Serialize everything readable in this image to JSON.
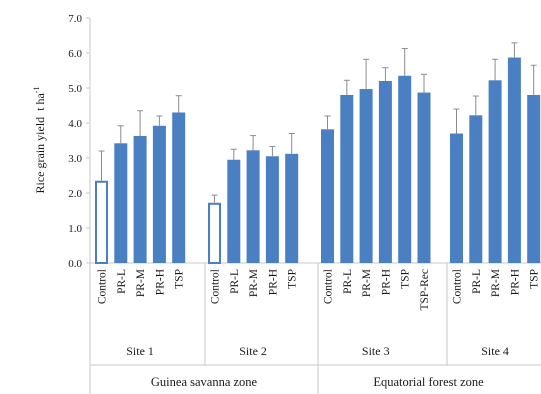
{
  "chart_data": {
    "type": "bar",
    "ylabel": "Rice grain yield",
    "ylabel_unit_main": "t ha",
    "ylabel_unit_sup": "-1",
    "ylim": [
      0,
      7
    ],
    "yticks": [
      "0.0",
      "1.0",
      "2.0",
      "3.0",
      "4.0",
      "5.0",
      "6.0",
      "7.0"
    ],
    "grid": false,
    "colors": {
      "filled": "#4a7fc1",
      "hollow_fill": "#ffffff",
      "hollow_stroke": "#4a7fc1",
      "error": "#8c8c8c",
      "axis": "#c8c8c8"
    },
    "zones": [
      "Guinea savanna zone",
      "Equatorial forest zone"
    ],
    "groups": [
      {
        "site": "Site 1",
        "bars": [
          {
            "label": "Control",
            "value": 2.35,
            "error": 0.85,
            "hollow": true
          },
          {
            "label": "PR-L",
            "value": 3.42,
            "error": 0.5
          },
          {
            "label": "PR-M",
            "value": 3.63,
            "error": 0.72
          },
          {
            "label": "PR-H",
            "value": 3.92,
            "error": 0.28
          },
          {
            "label": "TSP",
            "value": 4.3,
            "error": 0.48
          }
        ]
      },
      {
        "site": "Site 2",
        "bars": [
          {
            "label": "Control",
            "value": 1.72,
            "error": 0.22,
            "hollow": true
          },
          {
            "label": "PR-L",
            "value": 2.95,
            "error": 0.3
          },
          {
            "label": "PR-M",
            "value": 3.22,
            "error": 0.42
          },
          {
            "label": "PR-H",
            "value": 3.05,
            "error": 0.28
          },
          {
            "label": "TSP",
            "value": 3.12,
            "error": 0.58
          }
        ]
      },
      {
        "site": "Site 3",
        "bars": [
          {
            "label": "Control",
            "value": 3.82,
            "error": 0.38
          },
          {
            "label": "PR-L",
            "value": 4.8,
            "error": 0.42
          },
          {
            "label": "PR-M",
            "value": 4.97,
            "error": 0.85
          },
          {
            "label": "PR-H",
            "value": 5.2,
            "error": 0.38
          },
          {
            "label": "TSP",
            "value": 5.35,
            "error": 0.78
          },
          {
            "label": "TSP-Rec",
            "value": 4.87,
            "error": 0.52
          }
        ]
      },
      {
        "site": "Site 4",
        "bars": [
          {
            "label": "Control",
            "value": 3.7,
            "error": 0.7
          },
          {
            "label": "PR-L",
            "value": 4.22,
            "error": 0.55
          },
          {
            "label": "PR-M",
            "value": 5.22,
            "error": 0.6
          },
          {
            "label": "PR-H",
            "value": 5.87,
            "error": 0.42
          },
          {
            "label": "TSP",
            "value": 4.8,
            "error": 0.85
          }
        ]
      }
    ]
  }
}
